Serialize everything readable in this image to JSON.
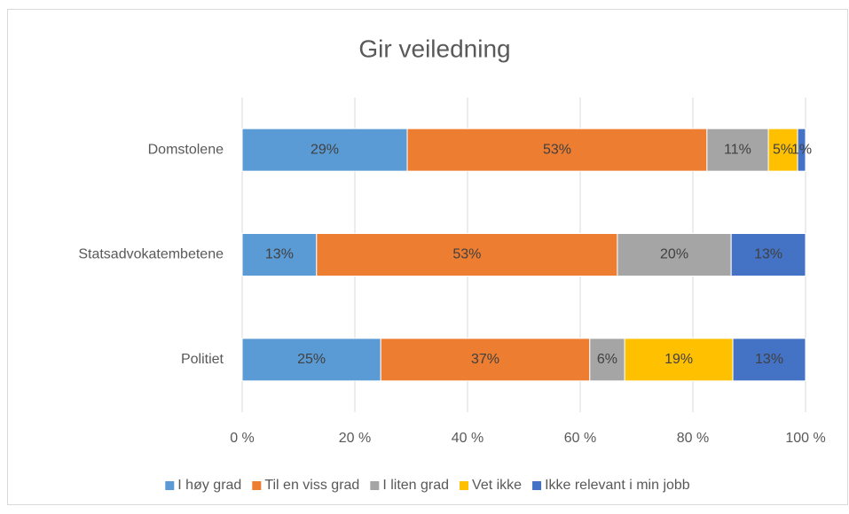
{
  "chart_data": {
    "type": "bar",
    "orientation": "horizontal",
    "stacked": true,
    "title": "Gir veiledning",
    "categories": [
      "Domstolene",
      "Statsadvokatembetene",
      "Politiet"
    ],
    "series": [
      {
        "name": "I høy grad",
        "color": "#5b9bd5",
        "values": [
          29.3,
          13.2,
          24.6
        ],
        "value_labels": [
          "29%",
          "13%",
          "25%"
        ]
      },
      {
        "name": "Til en viss grad",
        "color": "#ed7d31",
        "values": [
          53.2,
          53.4,
          37.1
        ],
        "value_labels": [
          "53%",
          "53%",
          "37%"
        ]
      },
      {
        "name": "I liten grad",
        "color": "#a5a5a5",
        "values": [
          10.9,
          20.2,
          6.2
        ],
        "value_labels": [
          "11%",
          "20%",
          "6%"
        ]
      },
      {
        "name": "Vet ikke",
        "color": "#ffc000",
        "values": [
          5.2,
          null,
          19.2
        ],
        "value_labels": [
          "5%",
          null,
          "19%"
        ]
      },
      {
        "name": "Ikke relevant i min jobb",
        "color": "#4472c4",
        "values": [
          1.4,
          13.2,
          12.9
        ],
        "value_labels": [
          "1%",
          "13%",
          "13%"
        ]
      }
    ],
    "xlim": [
      0,
      100
    ],
    "xticks": [
      {
        "value": 0,
        "label": "0 %"
      },
      {
        "value": 20,
        "label": "20 %"
      },
      {
        "value": 40,
        "label": "40 %"
      },
      {
        "value": 60,
        "label": "60 %"
      },
      {
        "value": 80,
        "label": "80 %"
      },
      {
        "value": 100,
        "label": "100 %"
      }
    ],
    "grid": true,
    "legend": "bottom"
  }
}
